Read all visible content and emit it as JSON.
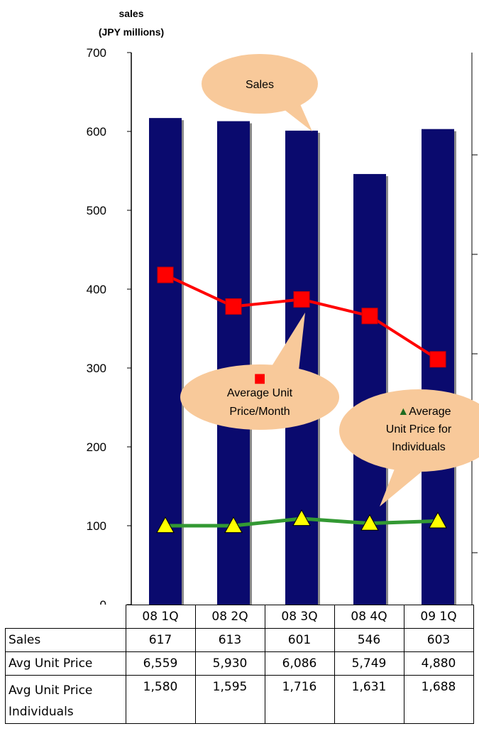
{
  "chart_data": {
    "type": "bar",
    "ylabel": [
      "sales",
      "(JPY millions)"
    ],
    "ylim": [
      0,
      700
    ],
    "yticks": [
      0,
      100,
      200,
      300,
      400,
      500,
      600,
      700
    ],
    "categories": [
      "08 1Q",
      "08 2Q",
      "08 3Q",
      "08 4Q",
      "09 1Q"
    ],
    "series": [
      {
        "name": "Sales",
        "kind": "bar",
        "color": "#0a0a6e",
        "values": [
          617,
          613,
          601,
          546,
          603
        ]
      },
      {
        "name": "Average Unit Price/Month",
        "kind": "line",
        "color": "#ff0000",
        "marker": "square",
        "plotted_values": [
          418,
          378,
          387,
          366,
          311
        ]
      },
      {
        "name": "Average Unit Price for Individuals",
        "kind": "line",
        "color": "#339933",
        "marker": "triangle",
        "marker_fill": "#ffff00",
        "plotted_values": [
          100,
          100,
          109,
          103,
          106
        ]
      }
    ],
    "callouts": [
      {
        "series": 0,
        "text_lines": [
          "Sales"
        ]
      },
      {
        "series": 1,
        "legend_marker": "■",
        "text_lines": [
          "Average Unit",
          "Price/Month"
        ]
      },
      {
        "series": 2,
        "legend_marker": "▲",
        "text_lines": [
          "Average",
          "Unit Price for",
          "Individuals"
        ]
      }
    ],
    "table": {
      "rows": [
        {
          "label_lines": [
            "Sales"
          ],
          "values": [
            "617",
            "613",
            "601",
            "546",
            "603"
          ]
        },
        {
          "label_lines": [
            "Avg Unit Price"
          ],
          "values": [
            "6,559",
            "5,930",
            "6,086",
            "5,749",
            "4,880"
          ]
        },
        {
          "label_lines": [
            "Avg Unit Price",
            "Individuals"
          ],
          "values": [
            "1,580",
            "1,595",
            "1,716",
            "1,631",
            "1,688"
          ]
        }
      ]
    },
    "grid": false,
    "legend": "none",
    "colors": {
      "callout_fill": "#f8c99a",
      "right_axis": "#000000"
    }
  }
}
